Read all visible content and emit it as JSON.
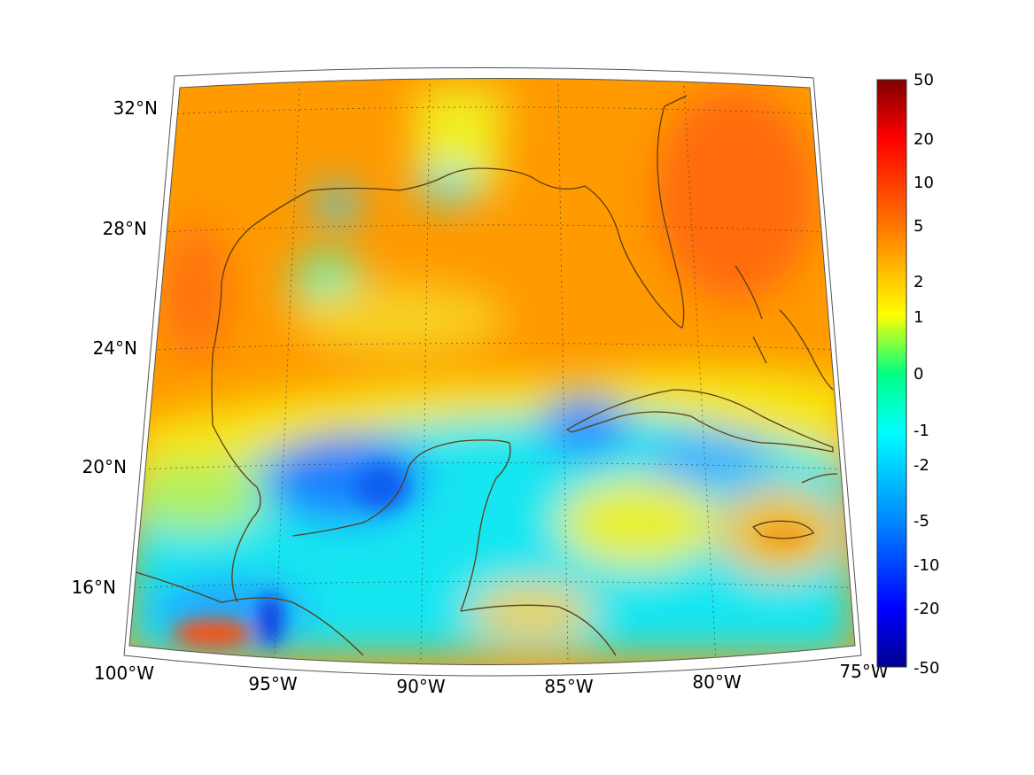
{
  "map": {
    "lon_labels": [
      "100°W",
      "95°W",
      "90°W",
      "85°W",
      "80°W",
      "75°W"
    ],
    "lat_labels": [
      "32°N",
      "28°N",
      "24°N",
      "20°N",
      "16°N"
    ]
  },
  "colorbar": {
    "tick_labels": [
      "50",
      "20",
      "10",
      "5",
      "2",
      "1",
      "0",
      "-1",
      "-2",
      "-5",
      "-10",
      "-20",
      "-50"
    ],
    "colors": [
      "#7f0000",
      "#ff0000",
      "#ff8000",
      "#ffff00",
      "#00ff80",
      "#00ffff",
      "#0080ff",
      "#0000ff",
      "#00008f"
    ]
  }
}
